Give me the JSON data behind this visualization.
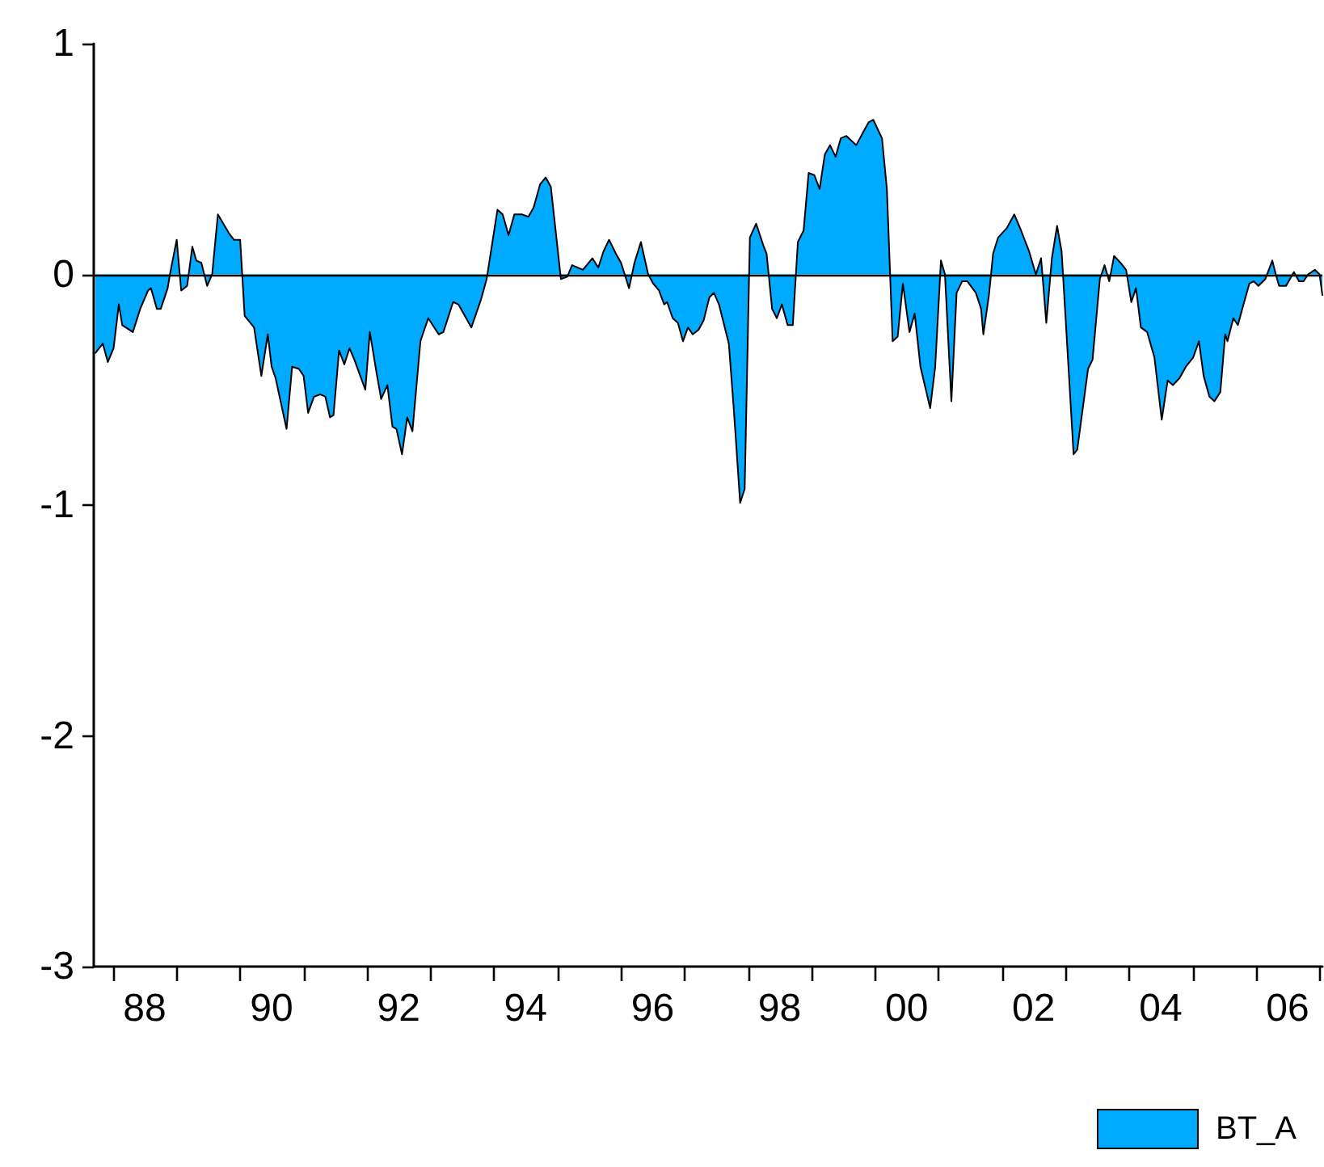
{
  "chart_data": {
    "type": "area",
    "series": [
      {
        "name": "BT_A",
        "color": "#00aaff",
        "x": [
          "1987-09-22",
          "1987-11-03",
          "1987-12-02",
          "1988-01-04",
          "1988-02-03",
          "1988-02-23",
          "1988-04-24",
          "1988-06-05",
          "1988-07-20",
          "1988-08-06",
          "1988-09-09",
          "1988-10-01",
          "1988-11-10",
          "1988-11-23",
          "1989-01-01",
          "1989-01-27",
          "1989-03-02",
          "1989-04-01",
          "1989-04-24",
          "1989-05-23",
          "1989-06-25",
          "1989-07-24",
          "1989-08-26",
          "1989-10-27",
          "1989-11-26",
          "1990-01-01",
          "1990-01-27",
          "1990-03-22",
          "1990-05-03",
          "1990-06-09",
          "1990-07-01",
          "1990-07-24",
          "1990-09-25",
          "1990-10-27",
          "1990-12-05",
          "1991-01-01",
          "1991-01-27",
          "1991-03-02",
          "1991-04-07",
          "1991-05-06",
          "1991-06-02",
          "1991-06-22",
          "1991-07-24",
          "1991-08-23",
          "1991-09-22",
          "1991-10-20",
          "1991-12-22",
          "1992-01-17",
          "1992-02-23",
          "1992-03-22",
          "1992-04-27",
          "1992-05-26",
          "1992-06-18",
          "1992-07-20",
          "1992-08-19",
          "1992-09-18",
          "1992-11-03",
          "1992-12-18",
          "1993-02-16",
          "1993-03-15",
          "1993-05-10",
          "1993-06-09",
          "1993-08-23",
          "1993-10-17",
          "1993-11-19",
          "1994-01-20",
          "1994-02-19",
          "1994-03-25",
          "1994-04-27",
          "1994-06-09",
          "1994-07-17",
          "1994-08-16",
          "1994-09-22",
          "1994-10-24",
          "1994-11-23",
          "1995-01-20",
          "1995-02-26",
          "1995-03-25",
          "1995-04-24",
          "1995-05-26",
          "1995-07-20",
          "1995-08-23",
          "1995-09-22",
          "1995-10-24",
          "1995-12-02",
          "1996-01-01",
          "1996-02-16",
          "1996-03-18",
          "1996-04-24",
          "1996-06-05",
          "1996-07-04",
          "1996-08-06",
          "1996-09-05",
          "1996-09-22",
          "1996-10-24",
          "1996-11-23",
          "1996-12-22",
          "1997-01-20",
          "1997-02-16",
          "1997-03-22",
          "1997-04-20",
          "1997-05-23",
          "1997-06-18",
          "1997-07-17",
          "1997-09-12",
          "1997-10-11",
          "1997-11-16",
          "1997-12-12",
          "1998-01-11",
          "1998-02-16",
          "1998-04-01",
          "1998-04-17",
          "1998-05-19",
          "1998-06-15",
          "1998-07-14",
          "1998-08-16",
          "1998-09-15",
          "1998-10-14",
          "1998-11-16",
          "1998-12-15",
          "1999-01-17",
          "1999-02-16",
          "1999-03-18",
          "1999-04-17",
          "1999-05-19",
          "1999-06-18",
          "1999-07-20",
          "1999-09-15",
          "1999-10-20",
          "1999-11-26",
          "1999-12-22",
          "2000-02-10",
          "2000-03-09",
          "2000-04-11",
          "2000-05-10",
          "2000-06-09",
          "2000-07-17",
          "2000-08-16",
          "2000-09-18",
          "2000-11-13",
          "2000-12-12",
          "2001-01-14",
          "2001-02-06",
          "2001-03-15",
          "2001-04-14",
          "2001-05-16",
          "2001-06-15",
          "2001-08-03",
          "2001-09-02",
          "2001-09-15",
          "2001-10-17",
          "2001-11-10",
          "2001-12-09",
          "2002-01-27",
          "2002-03-12",
          "2002-04-20",
          "2002-06-05",
          "2002-07-14",
          "2002-08-13",
          "2002-09-12",
          "2002-10-14",
          "2002-11-13",
          "2002-12-09",
          "2003-01-01",
          "2003-02-16",
          "2003-03-09",
          "2003-05-10",
          "2003-06-05",
          "2003-07-17",
          "2003-08-13",
          "2003-09-09",
          "2003-10-07",
          "2003-11-13",
          "2003-12-15",
          "2004-01-14",
          "2004-02-10",
          "2004-03-09",
          "2004-04-14",
          "2004-05-26",
          "2004-07-07",
          "2004-08-10",
          "2004-09-09",
          "2004-10-17",
          "2004-11-23",
          "2005-01-04",
          "2005-02-06",
          "2005-03-05",
          "2005-04-07",
          "2005-05-06",
          "2005-06-09",
          "2005-07-07",
          "2005-07-20",
          "2005-08-23",
          "2005-09-18",
          "2005-10-24",
          "2005-11-23",
          "2005-12-18",
          "2006-01-14",
          "2006-02-23",
          "2006-04-04",
          "2006-04-24",
          "2006-05-13",
          "2006-06-22",
          "2006-08-06",
          "2006-09-05",
          "2006-10-01",
          "2006-10-27",
          "2006-12-05",
          "2007-01-01",
          "2007-01-17"
        ],
        "values": [
          -0.34,
          -0.3,
          -0.38,
          -0.32,
          -0.13,
          -0.22,
          -0.25,
          -0.15,
          -0.07,
          -0.06,
          -0.15,
          -0.15,
          -0.06,
          0,
          0.15,
          -0.07,
          -0.05,
          0.12,
          0.06,
          0.05,
          -0.05,
          0,
          0.26,
          0.18,
          0.15,
          0.15,
          -0.18,
          -0.23,
          -0.44,
          -0.26,
          -0.4,
          -0.45,
          -0.67,
          -0.4,
          -0.41,
          -0.44,
          -0.6,
          -0.53,
          -0.52,
          -0.53,
          -0.62,
          -0.61,
          -0.33,
          -0.39,
          -0.32,
          -0.37,
          -0.5,
          -0.25,
          -0.42,
          -0.54,
          -0.48,
          -0.66,
          -0.67,
          -0.78,
          -0.62,
          -0.68,
          -0.29,
          -0.19,
          -0.26,
          -0.25,
          -0.12,
          -0.13,
          -0.23,
          -0.11,
          -0.02,
          0.28,
          0.26,
          0.17,
          0.26,
          0.26,
          0.25,
          0.29,
          0.39,
          0.42,
          0.38,
          -0.02,
          -0.01,
          0.04,
          0.03,
          0.02,
          0.07,
          0.03,
          0.1,
          0.15,
          0.09,
          0.05,
          -0.06,
          0.05,
          0.14,
          0,
          -0.04,
          -0.07,
          -0.13,
          -0.12,
          -0.19,
          -0.21,
          -0.29,
          -0.23,
          -0.26,
          -0.24,
          -0.2,
          -0.1,
          -0.08,
          -0.13,
          -0.3,
          -0.59,
          -0.99,
          -0.93,
          0.16,
          0.22,
          0.12,
          0.09,
          -0.15,
          -0.19,
          -0.13,
          -0.22,
          -0.22,
          0.14,
          0.19,
          0.44,
          0.43,
          0.37,
          0.52,
          0.56,
          0.51,
          0.59,
          0.6,
          0.56,
          0.61,
          0.66,
          0.67,
          0.59,
          0.37,
          -0.29,
          -0.27,
          -0.04,
          -0.25,
          -0.17,
          -0.4,
          -0.58,
          -0.4,
          0.06,
          0,
          -0.55,
          -0.08,
          -0.03,
          -0.03,
          -0.08,
          -0.15,
          -0.26,
          -0.09,
          0.09,
          0.16,
          0.2,
          0.26,
          0.19,
          0.1,
          0,
          0.07,
          -0.21,
          0.07,
          0.21,
          0.1,
          -0.19,
          -0.78,
          -0.76,
          -0.41,
          -0.37,
          -0.02,
          0.04,
          -0.03,
          0.08,
          0.05,
          0.02,
          -0.12,
          -0.06,
          -0.23,
          -0.25,
          -0.36,
          -0.63,
          -0.46,
          -0.48,
          -0.45,
          -0.4,
          -0.36,
          -0.29,
          -0.44,
          -0.53,
          -0.55,
          -0.51,
          -0.26,
          -0.29,
          -0.19,
          -0.22,
          -0.12,
          -0.04,
          -0.03,
          -0.05,
          -0.02,
          0.06,
          0,
          -0.05,
          -0.05,
          0.01,
          -0.03,
          -0.03,
          0,
          0.02,
          0,
          -0.09
        ]
      }
    ],
    "xlim": [
      "1987-09-12",
      "2007-01-17"
    ],
    "xticks": [
      {
        "value": "1988",
        "label": null
      },
      {
        "value": "1989",
        "label": null
      },
      {
        "value": "1990",
        "label": null
      },
      {
        "value": "1991",
        "label": null
      },
      {
        "value": "1992",
        "label": null
      },
      {
        "value": "1993",
        "label": null
      },
      {
        "value": "1994",
        "label": null
      },
      {
        "value": "1995",
        "label": null
      },
      {
        "value": "1996",
        "label": null
      },
      {
        "value": "1997",
        "label": null
      },
      {
        "value": "1998",
        "label": null
      },
      {
        "value": "1999",
        "label": null
      },
      {
        "value": "2000",
        "label": null
      },
      {
        "value": "2001",
        "label": null
      },
      {
        "value": "2002",
        "label": null
      },
      {
        "value": "2003",
        "label": null
      },
      {
        "value": "2004",
        "label": null
      },
      {
        "value": "2005",
        "label": null
      },
      {
        "value": "2006",
        "label": null
      },
      {
        "value": "2007",
        "label": null
      },
      {
        "value": "1988-07",
        "label": "88"
      },
      {
        "value": "1990-07",
        "label": "90"
      },
      {
        "value": "1992-07",
        "label": "92"
      },
      {
        "value": "1994-07",
        "label": "94"
      },
      {
        "value": "1996-07",
        "label": "96"
      },
      {
        "value": "1998-07",
        "label": "98"
      },
      {
        "value": "2000-07",
        "label": "00"
      },
      {
        "value": "2002-07",
        "label": "02"
      },
      {
        "value": "2004-07",
        "label": "04"
      },
      {
        "value": "2006-07",
        "label": "06"
      }
    ],
    "ylim": [
      -3,
      1
    ],
    "yticks": [
      -3,
      -2,
      -1,
      0,
      1
    ],
    "ref_lines": [
      {
        "axis": "y",
        "value": 0
      }
    ],
    "grid": false,
    "legend": "bottom right",
    "marker": "none",
    "line_style": "solid"
  }
}
